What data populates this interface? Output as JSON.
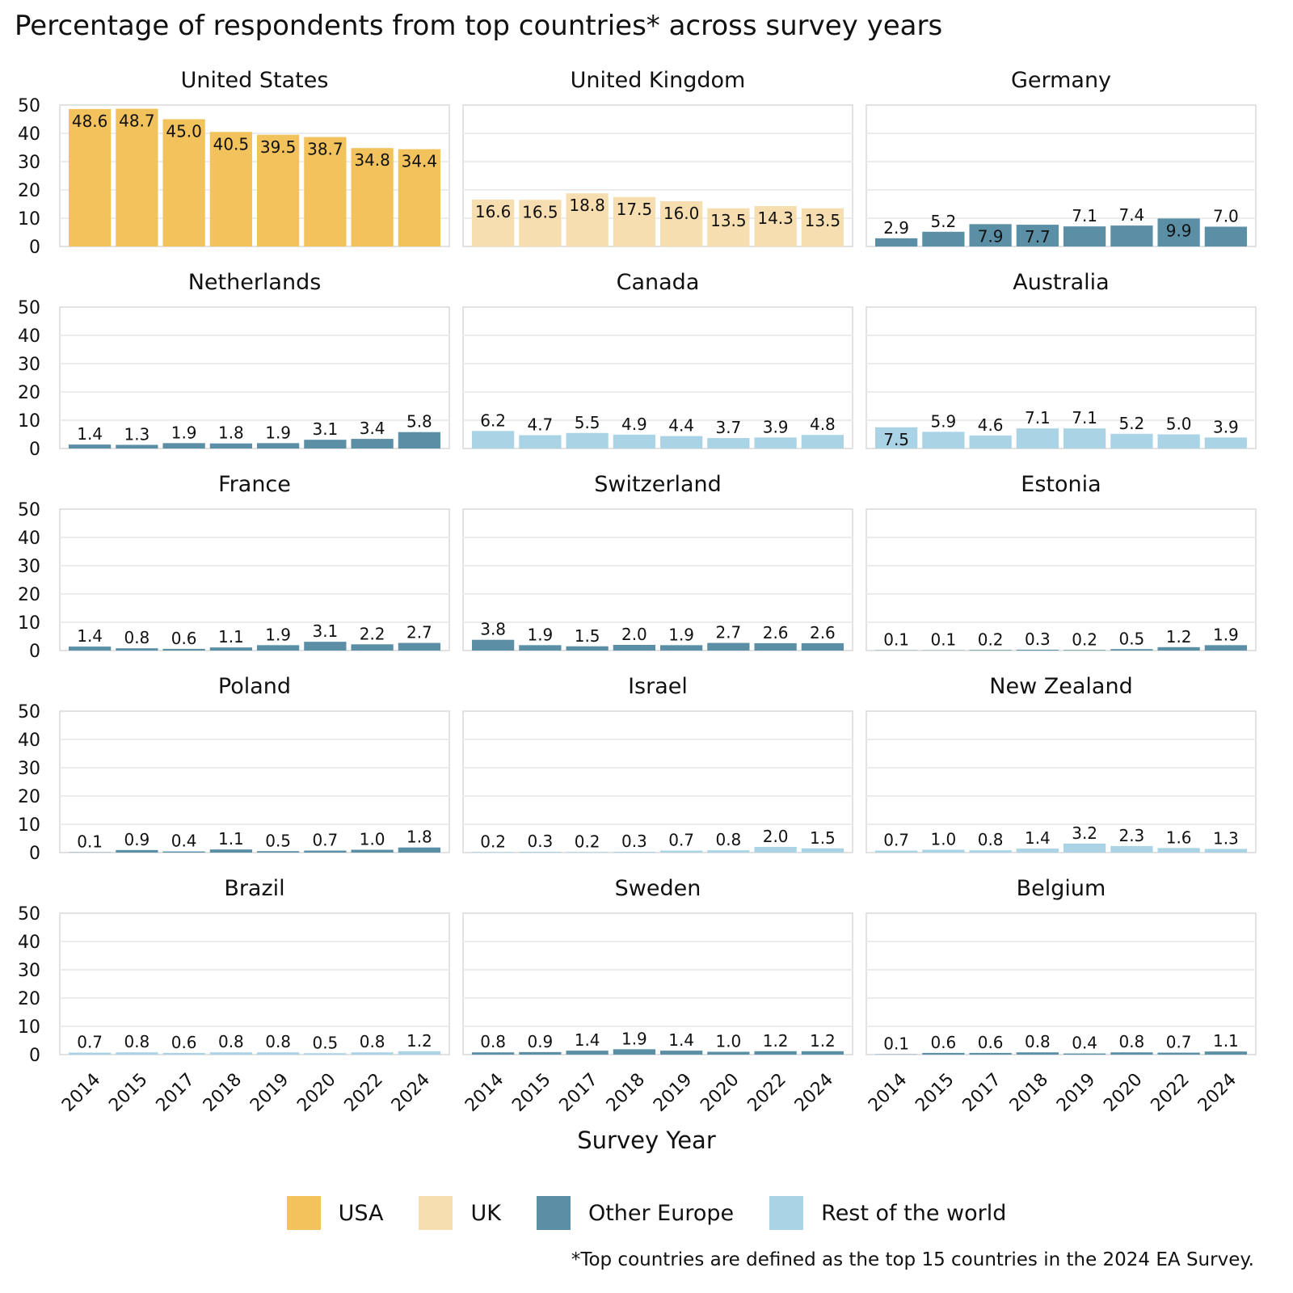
{
  "chart_data": {
    "type": "bar",
    "title": "Percentage of respondents from top countries* across survey years",
    "xlabel": "Survey Year",
    "ylabel": "",
    "ylim": [
      0,
      50
    ],
    "yticks": [
      0,
      10,
      20,
      30,
      40,
      50
    ],
    "grid": true,
    "categories": [
      "2014",
      "2015",
      "2017",
      "2018",
      "2019",
      "2020",
      "2022",
      "2024"
    ],
    "legend": [
      {
        "label": "USA",
        "color": "#f2c25c"
      },
      {
        "label": "UK",
        "color": "#f6deb0"
      },
      {
        "label": "Other Europe",
        "color": "#5b8fa6"
      },
      {
        "label": "Rest of the world",
        "color": "#aad3e6"
      }
    ],
    "legend_position": "bottom",
    "footnote": "*Top countries are defined as the top 15 countries in the 2024 EA Survey.",
    "panels": [
      {
        "name": "United States",
        "group": "USA",
        "values": [
          48.6,
          48.7,
          45.0,
          40.5,
          39.5,
          38.7,
          34.8,
          34.4
        ],
        "labels": [
          "48.6",
          "48.7",
          "45.0",
          "40.5",
          "39.5",
          "38.7",
          "34.8",
          "34.4"
        ]
      },
      {
        "name": "United Kingdom",
        "group": "UK",
        "values": [
          16.6,
          16.5,
          18.8,
          17.5,
          16.0,
          13.5,
          14.3,
          13.5
        ],
        "labels": [
          "16.6",
          "16.5",
          "18.8",
          "17.5",
          "16.0",
          "13.5",
          "14.3",
          "13.5"
        ]
      },
      {
        "name": "Germany",
        "group": "Other Europe",
        "values": [
          2.9,
          5.2,
          7.9,
          7.7,
          7.1,
          7.4,
          9.9,
          7.0
        ],
        "labels": [
          "2.9",
          "5.2",
          "7.9",
          "7.7",
          "7.1",
          "7.4",
          "9.9",
          "7.0"
        ]
      },
      {
        "name": "Netherlands",
        "group": "Other Europe",
        "values": [
          1.4,
          1.3,
          1.9,
          1.8,
          1.9,
          3.1,
          3.4,
          5.8
        ],
        "labels": [
          "1.4",
          "1.3",
          "1.9",
          "1.8",
          "1.9",
          "3.1",
          "3.4",
          "5.8"
        ]
      },
      {
        "name": "Canada",
        "group": "Rest of the world",
        "values": [
          6.2,
          4.7,
          5.5,
          4.9,
          4.4,
          3.7,
          3.9,
          4.8
        ],
        "labels": [
          "6.2",
          "4.7",
          "5.5",
          "4.9",
          "4.4",
          "3.7",
          "3.9",
          "4.8"
        ]
      },
      {
        "name": "Australia",
        "group": "Rest of the world",
        "values": [
          7.5,
          5.9,
          4.6,
          7.1,
          7.1,
          5.2,
          5.0,
          3.9
        ],
        "labels": [
          "7.5",
          "5.9",
          "4.6",
          "7.1",
          "7.1",
          "5.2",
          "5.0",
          "3.9"
        ]
      },
      {
        "name": "France",
        "group": "Other Europe",
        "values": [
          1.4,
          0.8,
          0.6,
          1.1,
          1.9,
          3.1,
          2.2,
          2.7
        ],
        "labels": [
          "1.4",
          "0.8",
          "0.6",
          "1.1",
          "1.9",
          "3.1",
          "2.2",
          "2.7"
        ]
      },
      {
        "name": "Switzerland",
        "group": "Other Europe",
        "values": [
          3.8,
          1.9,
          1.5,
          2.0,
          1.9,
          2.7,
          2.6,
          2.6
        ],
        "labels": [
          "3.8",
          "1.9",
          "1.5",
          "2.0",
          "1.9",
          "2.7",
          "2.6",
          "2.6"
        ]
      },
      {
        "name": "Estonia",
        "group": "Other Europe",
        "values": [
          0.1,
          0.1,
          0.2,
          0.3,
          0.2,
          0.5,
          1.2,
          1.9
        ],
        "labels": [
          "0.1",
          "0.1",
          "0.2",
          "0.3",
          "0.2",
          "0.5",
          "1.2",
          "1.9"
        ]
      },
      {
        "name": "Poland",
        "group": "Other Europe",
        "values": [
          0.1,
          0.9,
          0.4,
          1.1,
          0.5,
          0.7,
          1.0,
          1.8
        ],
        "labels": [
          "0.1",
          "0.9",
          "0.4",
          "1.1",
          "0.5",
          "0.7",
          "1.0",
          "1.8"
        ]
      },
      {
        "name": "Israel",
        "group": "Rest of the world",
        "values": [
          0.2,
          0.3,
          0.2,
          0.3,
          0.7,
          0.8,
          2.0,
          1.5
        ],
        "labels": [
          "0.2",
          "0.3",
          "0.2",
          "0.3",
          "0.7",
          "0.8",
          "2.0",
          "1.5"
        ]
      },
      {
        "name": "New Zealand",
        "group": "Rest of the world",
        "values": [
          0.7,
          1.0,
          0.8,
          1.4,
          3.2,
          2.3,
          1.6,
          1.3
        ],
        "labels": [
          "0.7",
          "1.0",
          "0.8",
          "1.4",
          "3.2",
          "2.3",
          "1.6",
          "1.3"
        ]
      },
      {
        "name": "Brazil",
        "group": "Rest of the world",
        "values": [
          0.7,
          0.8,
          0.6,
          0.8,
          0.8,
          0.5,
          0.8,
          1.2
        ],
        "labels": [
          "0.7",
          "0.8",
          "0.6",
          "0.8",
          "0.8",
          "0.5",
          "0.8",
          "1.2"
        ]
      },
      {
        "name": "Sweden",
        "group": "Other Europe",
        "values": [
          0.8,
          0.9,
          1.4,
          1.9,
          1.4,
          1.0,
          1.2,
          1.2
        ],
        "labels": [
          "0.8",
          "0.9",
          "1.4",
          "1.9",
          "1.4",
          "1.0",
          "1.2",
          "1.2"
        ]
      },
      {
        "name": "Belgium",
        "group": "Other Europe",
        "values": [
          0.1,
          0.6,
          0.6,
          0.8,
          0.4,
          0.8,
          0.7,
          1.1
        ],
        "labels": [
          "0.1",
          "0.6",
          "0.6",
          "0.8",
          "0.4",
          "0.8",
          "0.7",
          "1.1"
        ]
      }
    ]
  }
}
